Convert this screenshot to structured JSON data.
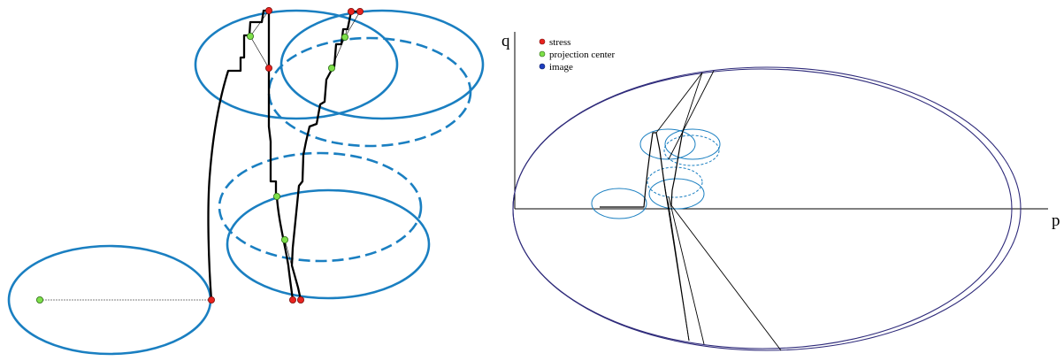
{
  "right_diagram": {
    "axis_labels": {
      "vertical": "q",
      "horizontal": "p"
    },
    "legend": [
      {
        "label": "stress",
        "color": "#e8231f"
      },
      {
        "label": "projection center",
        "color": "#7ee04a"
      },
      {
        "label": "image",
        "color": "#1f3fbf"
      }
    ]
  },
  "colors": {
    "surface": "#1a7fc1",
    "bounding_surface": "#2e2a7a",
    "path": "#000000",
    "stress_marker": "#e8231f",
    "projection_marker": "#7ee04a"
  }
}
